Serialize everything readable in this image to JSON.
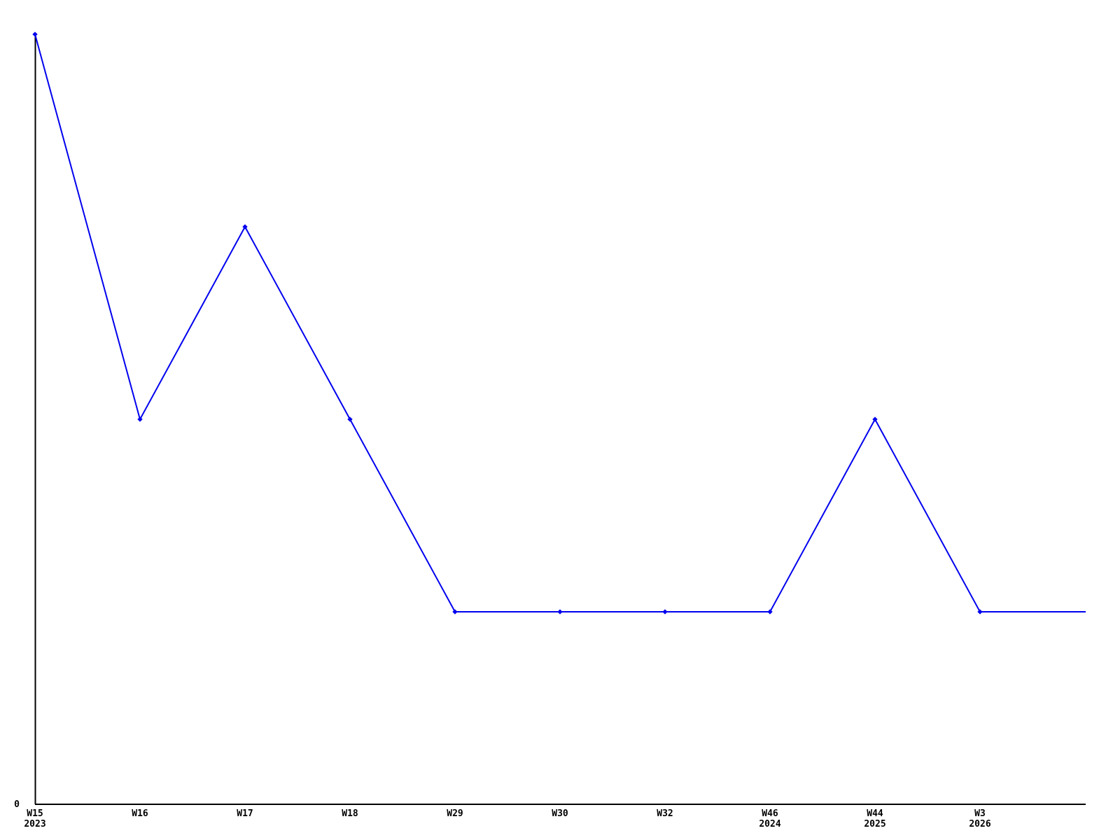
{
  "page": {
    "background_color": "#ffffff",
    "title": ""
  },
  "chart_data": {
    "type": "line",
    "title": "",
    "xlabel": "",
    "ylabel": "",
    "legend": false,
    "grid": false,
    "line_color": "#0000ee",
    "axis_color": "#000000",
    "marker": "diamond",
    "categories": [
      "W15",
      "W16",
      "W17",
      "W18",
      "W29",
      "W30",
      "W32",
      "W46",
      "W44",
      "W3"
    ],
    "category_years": [
      "2023",
      "",
      "",
      "",
      "",
      "",
      "",
      "2024",
      "2025",
      "2026"
    ],
    "values": [
      4,
      2,
      3,
      2,
      1,
      1,
      1,
      1,
      2,
      1
    ],
    "trailing_segment": {
      "description": "line continues flat past last labeled point to right edge, no marker, no label",
      "value": 1
    },
    "y_axis": {
      "min": 0,
      "max": 4,
      "tick_labels": [
        "0"
      ]
    }
  },
  "layout_note": "single blue line series over black L-shaped axes, week-of-year x labels"
}
